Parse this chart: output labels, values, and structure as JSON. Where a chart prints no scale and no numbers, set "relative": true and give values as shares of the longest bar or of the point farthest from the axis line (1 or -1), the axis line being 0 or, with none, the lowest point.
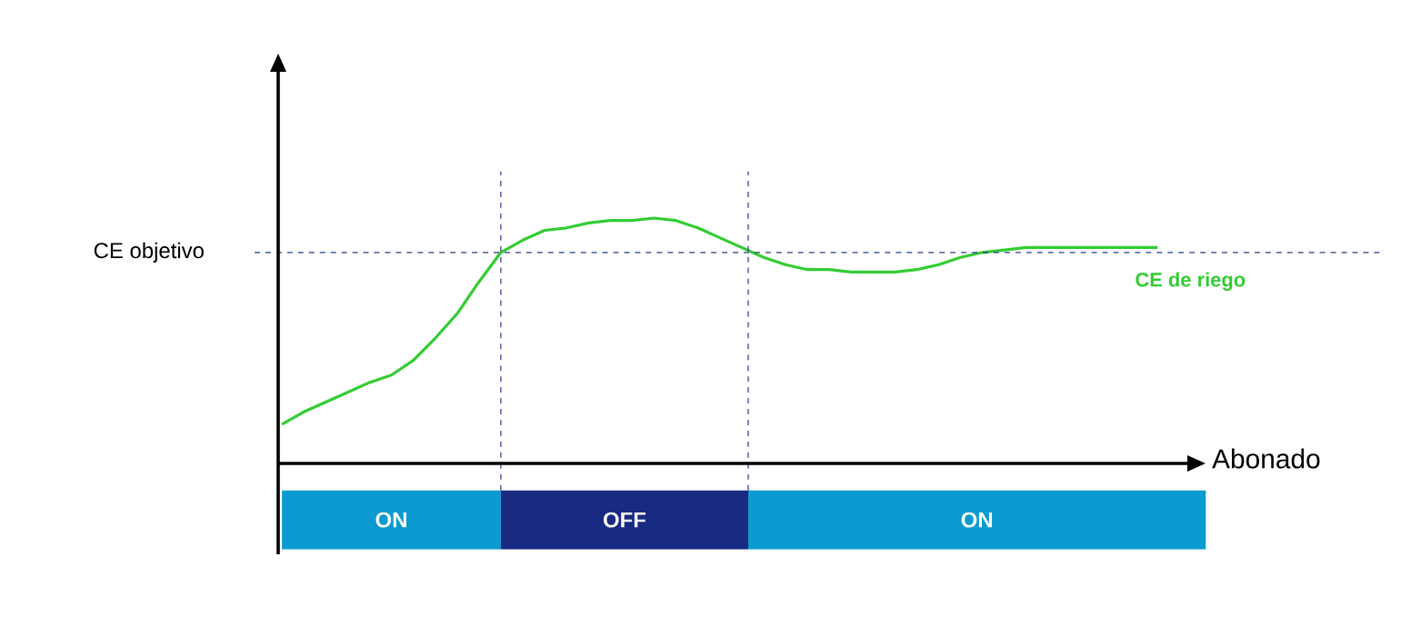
{
  "chart_data": {
    "type": "line",
    "relative": true,
    "xlabel": "Abonado",
    "categories": [
      null,
      null,
      null,
      null,
      null,
      null,
      null,
      null,
      null,
      null,
      null,
      null,
      null,
      null,
      null,
      null,
      null,
      null,
      null,
      null,
      null,
      null,
      null,
      null,
      null,
      null,
      null,
      null,
      null,
      null,
      null,
      null,
      null,
      null,
      null,
      null,
      null,
      null,
      null,
      null,
      null
    ],
    "series": [
      {
        "name": "CE de riego",
        "color": "#33cc33",
        "values": [
          0.16,
          0.21,
          0.25,
          0.29,
          0.33,
          0.36,
          0.42,
          0.51,
          0.61,
          0.74,
          0.86,
          0.91,
          0.95,
          0.96,
          0.98,
          0.99,
          0.99,
          1.0,
          0.99,
          0.96,
          0.92,
          0.88,
          0.84,
          0.81,
          0.79,
          0.79,
          0.78,
          0.78,
          0.78,
          0.79,
          0.81,
          0.84,
          0.86,
          0.87,
          0.88,
          0.88,
          0.88,
          0.88,
          0.88,
          0.88,
          0.88
        ]
      }
    ],
    "ref_lines": [
      {
        "axis": "y",
        "value": 0.86,
        "label": "CE objetivo",
        "color": "#2a3a8a",
        "line_style": "dashed"
      }
    ],
    "annotations": [
      "ON",
      "OFF",
      "ON"
    ]
  }
}
